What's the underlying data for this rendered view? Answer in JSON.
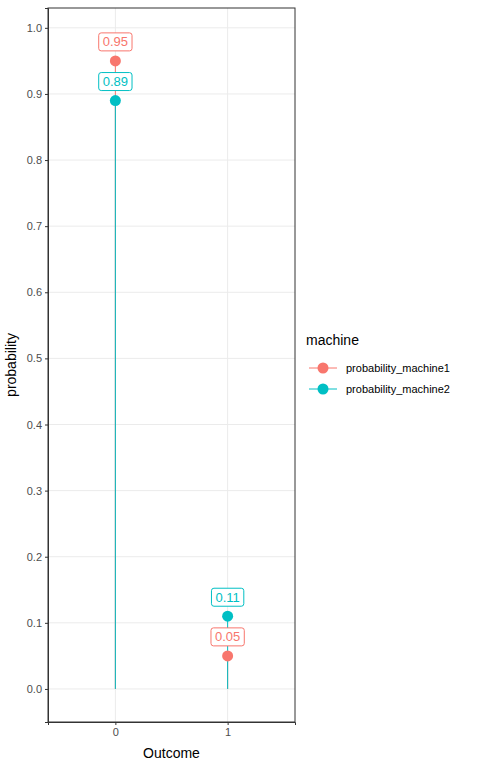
{
  "chart_data": {
    "type": "lollipop",
    "x_label": "Outcome",
    "y_label": "probability",
    "legend_title": "machine",
    "categories": [
      "0",
      "1"
    ],
    "series": [
      {
        "name": "probability_machine1",
        "color": "#F8766D",
        "values": [
          0.95,
          0.05
        ]
      },
      {
        "name": "probability_machine2",
        "color": "#00BFC4",
        "values": [
          0.89,
          0.11
        ]
      }
    ],
    "ylim": [
      -0.05,
      1.03
    ],
    "yticks": [
      {
        "value": 0,
        "label": "0.0"
      },
      0.1,
      0.2,
      0.3,
      0.4,
      0.5,
      0.6,
      0.7,
      0.8,
      0.9,
      {
        "value": 1,
        "label": "1.0"
      }
    ],
    "grid": true,
    "legend": "right",
    "data_labels": true,
    "marker": "circle"
  }
}
